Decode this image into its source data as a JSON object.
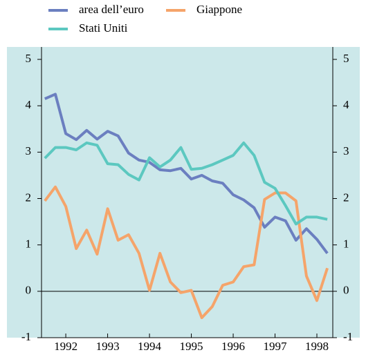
{
  "chart_data": {
    "type": "line",
    "x": [
      1992,
      1992.25,
      1992.5,
      1992.75,
      1993,
      1993.25,
      1993.5,
      1993.75,
      1994,
      1994.25,
      1994.5,
      1994.75,
      1995,
      1995.25,
      1995.5,
      1995.75,
      1996,
      1996.25,
      1996.5,
      1996.75,
      1997,
      1997.25,
      1997.5,
      1997.75,
      1998,
      1998.25,
      1998.5,
      1998.75
    ],
    "series": [
      {
        "name": "area dell’euro",
        "color": "#6b7fc0",
        "values": [
          4.15,
          4.25,
          3.4,
          3.27,
          3.47,
          3.28,
          3.45,
          3.35,
          2.98,
          2.83,
          2.78,
          2.62,
          2.6,
          2.65,
          2.42,
          2.5,
          2.38,
          2.33,
          2.08,
          1.97,
          1.8,
          1.38,
          1.6,
          1.52,
          1.1,
          1.35,
          1.12,
          0.82
        ]
      },
      {
        "name": "Giappone",
        "color": "#f5a46a",
        "values": [
          1.95,
          2.25,
          1.83,
          0.92,
          1.32,
          0.8,
          1.78,
          1.1,
          1.22,
          0.82,
          0.02,
          0.82,
          0.2,
          -0.03,
          0.02,
          -0.57,
          -0.33,
          0.13,
          0.2,
          0.53,
          0.57,
          1.98,
          2.12,
          2.12,
          1.95,
          0.33,
          -0.2,
          0.5
        ]
      },
      {
        "name": "Stati Uniti",
        "color": "#5cc8c0",
        "values": [
          2.87,
          3.1,
          3.1,
          3.05,
          3.2,
          3.15,
          2.75,
          2.73,
          2.52,
          2.4,
          2.88,
          2.68,
          2.83,
          3.1,
          2.63,
          2.65,
          2.73,
          2.83,
          2.93,
          3.2,
          2.93,
          2.35,
          2.22,
          1.85,
          1.45,
          1.6,
          1.6,
          1.55
        ]
      }
    ],
    "xlim": [
      1991.92,
      1998.88
    ],
    "xticks": [
      {
        "value": 1992.5,
        "label": "1992"
      },
      {
        "value": 1993.5,
        "label": "1993"
      },
      {
        "value": 1994.5,
        "label": "1994"
      },
      {
        "value": 1995.5,
        "label": "1995"
      },
      {
        "value": 1996.5,
        "label": "1996"
      },
      {
        "value": 1997.5,
        "label": "1997"
      },
      {
        "value": 1998.5,
        "label": "1998"
      }
    ],
    "ylim": [
      -1,
      5
    ],
    "yticks": [
      -1,
      0,
      1,
      2,
      3,
      4,
      5
    ],
    "y2lim": [
      -1,
      5
    ],
    "y2ticks": [
      -1,
      0,
      1,
      2,
      3,
      4,
      5
    ],
    "background": "#cce8ea"
  }
}
